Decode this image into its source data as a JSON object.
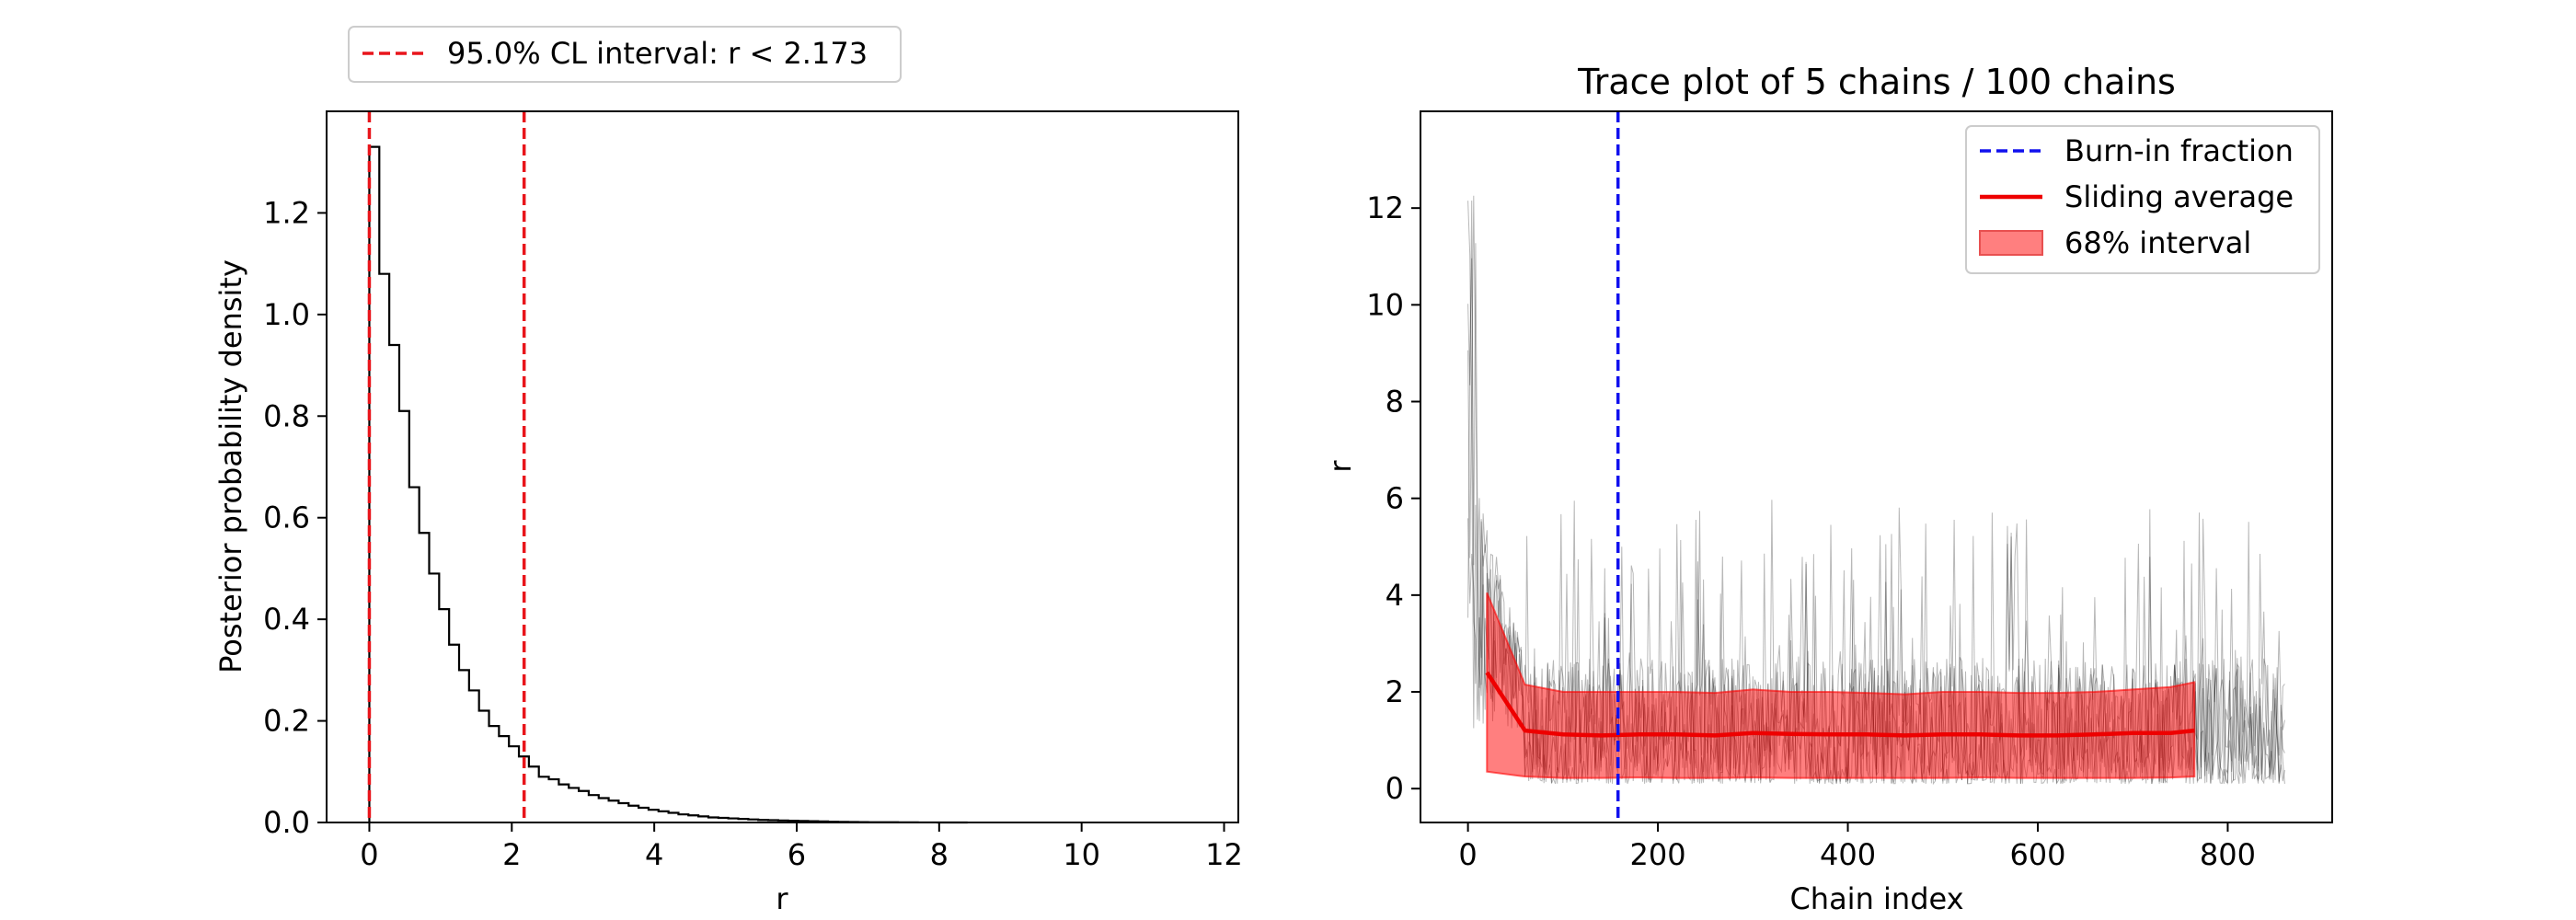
{
  "chart_data": [
    {
      "type": "bar",
      "subtype": "step-histogram",
      "title": "",
      "xlabel": "r",
      "ylabel": "Posterior probability density",
      "xlim": [
        -0.6,
        12.2
      ],
      "ylim": [
        0.0,
        1.4
      ],
      "xticks": [
        0,
        2,
        4,
        6,
        8,
        10,
        12
      ],
      "xtick_labels": [
        "0",
        "2",
        "4",
        "6",
        "8",
        "10",
        "12"
      ],
      "yticks": [
        0.0,
        0.2,
        0.4,
        0.6,
        0.8,
        1.0,
        1.2
      ],
      "ytick_labels": [
        "0.0",
        "0.2",
        "0.4",
        "0.6",
        "0.8",
        "1.0",
        "1.2"
      ],
      "grid": false,
      "legend_placement": "above-left",
      "bin_width": 0.14,
      "values": [
        1.33,
        1.08,
        0.94,
        0.81,
        0.66,
        0.57,
        0.49,
        0.42,
        0.35,
        0.3,
        0.26,
        0.22,
        0.19,
        0.17,
        0.15,
        0.13,
        0.11,
        0.09,
        0.085,
        0.075,
        0.068,
        0.062,
        0.054,
        0.048,
        0.043,
        0.038,
        0.033,
        0.029,
        0.025,
        0.022,
        0.019,
        0.016,
        0.014,
        0.012,
        0.01,
        0.009,
        0.008,
        0.007,
        0.006,
        0.005,
        0.0045,
        0.004,
        0.0035,
        0.003,
        0.0025,
        0.002,
        0.0015,
        0.0012,
        0.001,
        0.0008,
        0.0006,
        0.0005,
        0.0004,
        0.0003,
        0.0002,
        0.0001,
        0.0001,
        5e-05,
        2e-05,
        0.0
      ],
      "lines": [
        {
          "kind": "vline",
          "x": 0.0,
          "color": "#e8151b",
          "style": "dashed"
        },
        {
          "kind": "vline",
          "x": 2.173,
          "color": "#e8151b",
          "style": "dashed"
        }
      ],
      "legend": [
        {
          "label": "95.0% CL interval: r < 2.173",
          "color": "#e8151b",
          "style": "dashed"
        }
      ]
    },
    {
      "type": "line",
      "title": "Trace plot of 5 chains / 100 chains",
      "xlabel": "Chain index",
      "ylabel": "r",
      "xlim": [
        -50,
        910
      ],
      "ylim": [
        -0.7,
        14.0
      ],
      "xticks": [
        0,
        200,
        400,
        600,
        800
      ],
      "xtick_labels": [
        "0",
        "200",
        "400",
        "600",
        "800"
      ],
      "yticks": [
        0,
        2,
        4,
        6,
        8,
        10,
        12
      ],
      "ytick_labels": [
        "0",
        "2",
        "4",
        "6",
        "8",
        "10",
        "12"
      ],
      "grid": false,
      "legend_placement": "top-right",
      "burn_in_x": 158,
      "sliding_average": {
        "x": [
          20,
          60,
          100,
          140,
          180,
          220,
          260,
          300,
          340,
          380,
          420,
          460,
          500,
          540,
          580,
          620,
          660,
          700,
          740,
          765
        ],
        "y": [
          2.4,
          1.2,
          1.12,
          1.1,
          1.12,
          1.12,
          1.1,
          1.15,
          1.13,
          1.12,
          1.12,
          1.1,
          1.12,
          1.12,
          1.1,
          1.1,
          1.12,
          1.15,
          1.15,
          1.2
        ]
      },
      "interval_68": {
        "x": [
          20,
          60,
          100,
          140,
          180,
          220,
          260,
          300,
          340,
          380,
          420,
          460,
          500,
          540,
          580,
          620,
          660,
          700,
          740,
          765
        ],
        "lower": [
          0.35,
          0.25,
          0.22,
          0.22,
          0.23,
          0.22,
          0.22,
          0.23,
          0.22,
          0.22,
          0.22,
          0.22,
          0.22,
          0.23,
          0.22,
          0.22,
          0.22,
          0.22,
          0.23,
          0.25
        ],
        "upper": [
          4.05,
          2.15,
          2.0,
          2.0,
          2.0,
          2.0,
          1.98,
          2.05,
          2.0,
          2.0,
          1.98,
          1.95,
          2.0,
          2.0,
          1.98,
          1.98,
          2.0,
          2.05,
          2.1,
          2.2
        ]
      },
      "trace_chain_count": 5,
      "trace_x_max": 860,
      "legend": [
        {
          "label": "Burn-in fraction",
          "color": "#1010ee",
          "style": "dashed"
        },
        {
          "label": "Sliding average",
          "color": "#ee0000",
          "style": "solid"
        },
        {
          "label": "68% interval",
          "color": "#ff7f7f",
          "style": "patch"
        }
      ]
    }
  ]
}
